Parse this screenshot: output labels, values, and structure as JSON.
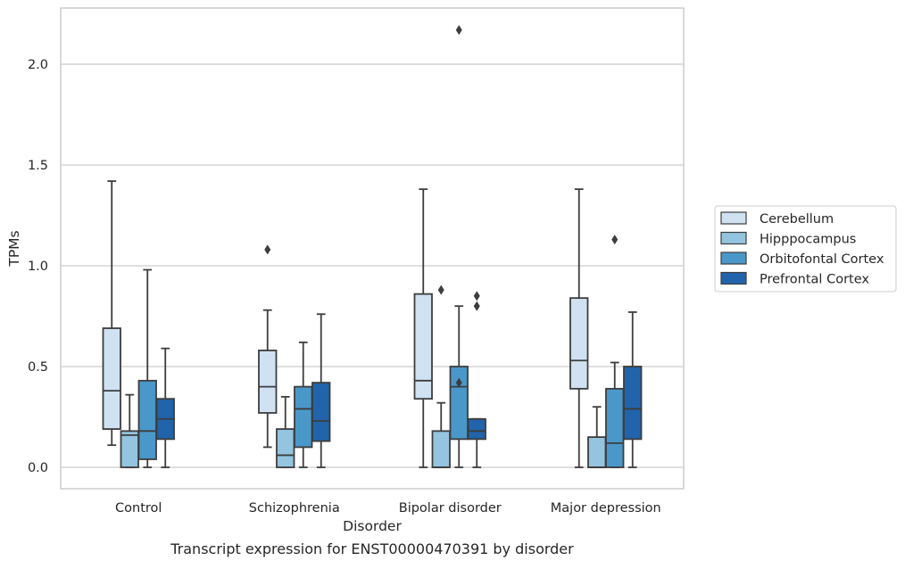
{
  "chart_data": {
    "type": "boxplot",
    "xlabel": "Disorder",
    "ylabel": "TPMs",
    "caption": "Transcript expression for ENST00000470391 by disorder",
    "categories": [
      "Control",
      "Schizophrenia",
      "Bipolar disorder",
      "Major depression"
    ],
    "ylim": [
      -0.1,
      2.28
    ],
    "yticks": [
      0.0,
      0.5,
      1.0,
      1.5,
      2.0
    ],
    "ytick_labels": [
      "0.0",
      "0.5",
      "1.0",
      "1.5",
      "2.0"
    ],
    "grid": "horizontal",
    "legend": {
      "placement": "right"
    },
    "series": [
      {
        "name": "Cerebellum",
        "color": "#d0e1f2",
        "boxes": [
          {
            "whislo": 0.11,
            "q1": 0.19,
            "med": 0.38,
            "q3": 0.69,
            "whishi": 1.42,
            "fliers": []
          },
          {
            "whislo": 0.1,
            "q1": 0.27,
            "med": 0.4,
            "q3": 0.58,
            "whishi": 0.78,
            "fliers": [
              1.08
            ]
          },
          {
            "whislo": 0.0,
            "q1": 0.34,
            "med": 0.43,
            "q3": 0.86,
            "whishi": 1.38,
            "fliers": []
          },
          {
            "whislo": 0.0,
            "q1": 0.39,
            "med": 0.53,
            "q3": 0.84,
            "whishi": 1.38,
            "fliers": []
          }
        ]
      },
      {
        "name": "Hipppocampus",
        "color": "#94c4df",
        "boxes": [
          {
            "whislo": 0.0,
            "q1": 0.0,
            "med": 0.16,
            "q3": 0.18,
            "whishi": 0.36,
            "fliers": []
          },
          {
            "whislo": 0.0,
            "q1": 0.0,
            "med": 0.06,
            "q3": 0.19,
            "whishi": 0.35,
            "fliers": []
          },
          {
            "whislo": 0.0,
            "q1": 0.0,
            "med": 0.0,
            "q3": 0.18,
            "whishi": 0.32,
            "fliers": [
              0.88
            ]
          },
          {
            "whislo": 0.0,
            "q1": 0.0,
            "med": 0.0,
            "q3": 0.15,
            "whishi": 0.3,
            "fliers": []
          }
        ]
      },
      {
        "name": "Orbitofontal Cortex",
        "color": "#4a98c9",
        "boxes": [
          {
            "whislo": 0.0,
            "q1": 0.04,
            "med": 0.18,
            "q3": 0.43,
            "whishi": 0.98,
            "fliers": []
          },
          {
            "whislo": 0.0,
            "q1": 0.1,
            "med": 0.29,
            "q3": 0.4,
            "whishi": 0.62,
            "fliers": []
          },
          {
            "whislo": 0.0,
            "q1": 0.14,
            "med": 0.4,
            "q3": 0.5,
            "whishi": 0.8,
            "fliers": [
              2.17,
              0.42
            ]
          },
          {
            "whislo": 0.0,
            "q1": 0.0,
            "med": 0.12,
            "q3": 0.39,
            "whishi": 0.52,
            "fliers": [
              1.13
            ]
          }
        ]
      },
      {
        "name": "Prefrontal Cortex",
        "color": "#2164ab",
        "boxes": [
          {
            "whislo": 0.0,
            "q1": 0.14,
            "med": 0.24,
            "q3": 0.34,
            "whishi": 0.59,
            "fliers": []
          },
          {
            "whislo": 0.0,
            "q1": 0.13,
            "med": 0.23,
            "q3": 0.42,
            "whishi": 0.76,
            "fliers": []
          },
          {
            "whislo": 0.0,
            "q1": 0.14,
            "med": 0.18,
            "q3": 0.24,
            "whishi": 0.24,
            "fliers": [
              0.85,
              0.8
            ]
          },
          {
            "whislo": 0.0,
            "q1": 0.14,
            "med": 0.29,
            "q3": 0.5,
            "whishi": 0.77,
            "fliers": []
          }
        ]
      }
    ]
  }
}
